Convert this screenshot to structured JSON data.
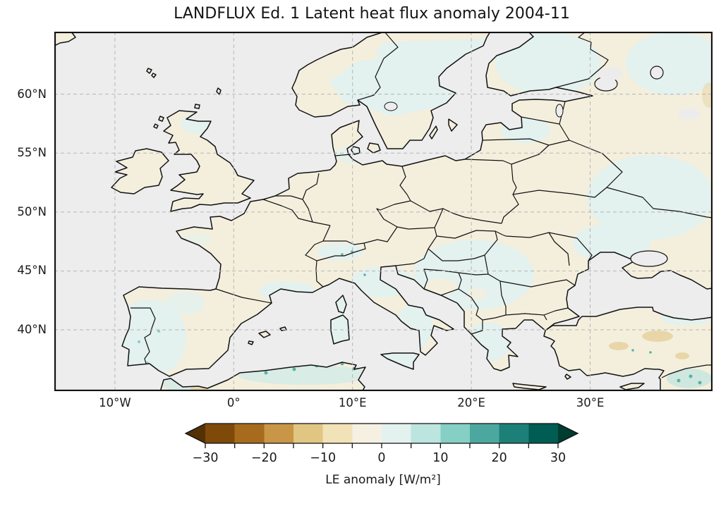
{
  "figure": {
    "title": "LANDFLUX Ed. 1 Latent heat flux anomaly 2004-11"
  },
  "chart_data": {
    "type": "heatmap",
    "subtype": "geographic filled-grid anomaly map",
    "title": "LANDFLUX Ed. 1 Latent heat flux anomaly 2004-11",
    "dataset": "LANDFLUX Ed. 1",
    "variable": "Latent heat flux (LE) anomaly",
    "period": "2004-11",
    "region": "Europe, Mediterranean, North Africa, Anatolia",
    "extent": {
      "lon_min": -15.1,
      "lon_max": 40.3,
      "lat_min": 34.8,
      "lat_max": 65.3
    },
    "grid": "dashed gray graticule",
    "x_ticks": [
      {
        "value": -10,
        "label": "10°W"
      },
      {
        "value": 0,
        "label": "0°"
      },
      {
        "value": 10,
        "label": "10°E"
      },
      {
        "value": 20,
        "label": "20°E"
      },
      {
        "value": 30,
        "label": "30°E"
      }
    ],
    "y_ticks": [
      {
        "value": 60,
        "label": "60°N"
      },
      {
        "value": 55,
        "label": "55°N"
      },
      {
        "value": 50,
        "label": "50°N"
      },
      {
        "value": 45,
        "label": "45°N"
      },
      {
        "value": 40,
        "label": "40°N"
      }
    ],
    "colorbar": {
      "label": "LE anomaly [W/m²]",
      "units": "W/m²",
      "orientation": "horizontal",
      "extend": "both",
      "colormap": "BrBG (brown → cream → teal)",
      "boundaries": [
        -30,
        -25,
        -20,
        -15,
        -10,
        -5,
        0,
        5,
        10,
        15,
        20,
        25,
        30
      ],
      "tick_values": [
        -30,
        -20,
        -10,
        0,
        10,
        20,
        30
      ],
      "tick_labels": [
        "−30",
        "−20",
        "−10",
        "0",
        "10",
        "20",
        "30"
      ],
      "colors": [
        "#543005",
        "#7f4909",
        "#a76b1d",
        "#c99546",
        "#e1c582",
        "#f2e2b8",
        "#f5f0e2",
        "#e3f1ef",
        "#bce5df",
        "#85cfc4",
        "#4ca89e",
        "#1d8078",
        "#015c53",
        "#003c30"
      ]
    },
    "map_colors": {
      "ocean_no_data": "#ededed",
      "land_slight_negative": "#f4efdd",
      "land_slight_positive": "#e3f1ef",
      "moderate_positive": "#85cfc4",
      "strong_positive_specks": "#4ca89e",
      "moderate_negative_tan": "#e8d3a2",
      "coastline": "#111111",
      "graticule": "#b5b5b5"
    },
    "anomaly_regions": [
      {
        "region": "Portugal and western Iberia",
        "anomaly_wm2": "+2 to +5"
      },
      {
        "region": "Eastern Spain",
        "anomaly_wm2": "0 to −5"
      },
      {
        "region": "France, Benelux, Germany, Poland",
        "anomaly_wm2": "0 to −5"
      },
      {
        "region": "England, Wales, Ireland",
        "anomaly_wm2": "0 to −5"
      },
      {
        "region": "Scotland",
        "anomaly_wm2": "0 to +5"
      },
      {
        "region": "Italy, Alps, Balkans, Hungary, Romania, Greece",
        "anomaly_wm2": "0 to +5"
      },
      {
        "region": "Inland Scandinavia and Finland",
        "anomaly_wm2": "0 to +5"
      },
      {
        "region": "Norwegian Atlantic coast",
        "anomaly_wm2": "0 to −5"
      },
      {
        "region": "Baltic states and western Russia",
        "anomaly_wm2": "mixed −5 to +5"
      },
      {
        "region": "Central Turkey (Anatolia)",
        "anomaly_wm2": "−5 to −15 tan patches"
      },
      {
        "region": "North African coast and Levant",
        "anomaly_wm2": "+5 to +15 patches"
      }
    ]
  }
}
